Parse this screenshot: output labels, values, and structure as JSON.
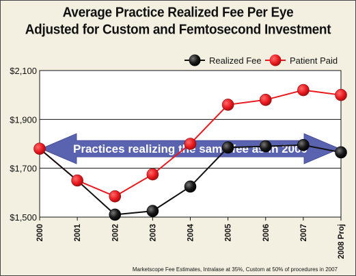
{
  "chart_data": {
    "type": "line",
    "title": "Average Practice Realized Fee Per Eye",
    "subtitle": "Adjusted for Custom and Femtosecond Investment",
    "categories": [
      "2000",
      "2001",
      "2002",
      "2003",
      "2004",
      "2005",
      "2006",
      "2007",
      "2008 Proj"
    ],
    "series": [
      {
        "name": "Realized Fee",
        "color": "#111111",
        "values": [
          1780,
          1650,
          1510,
          1525,
          1625,
          1785,
          1790,
          1795,
          1765
        ]
      },
      {
        "name": "Patient Paid",
        "color": "#e8191e",
        "values": [
          1780,
          1650,
          1585,
          1675,
          1800,
          1960,
          1980,
          2020,
          2000
        ]
      }
    ],
    "yticks": [
      1500,
      1700,
      1900,
      2100
    ],
    "ytick_labels": [
      "$1,500",
      "$1,700",
      "$1,900",
      "$2,100"
    ],
    "ylim": [
      1500,
      2100
    ],
    "grid": "horizontal",
    "legend_position": "top-right",
    "annotation": "Practices realizing the same fee as in 2000",
    "annotation_value": 1780,
    "annotation_color": "#5a63b0",
    "footnote": "Marketscope Fee Estimates, Intralase at 35%, Custom at 50% of procedures in 2007"
  }
}
